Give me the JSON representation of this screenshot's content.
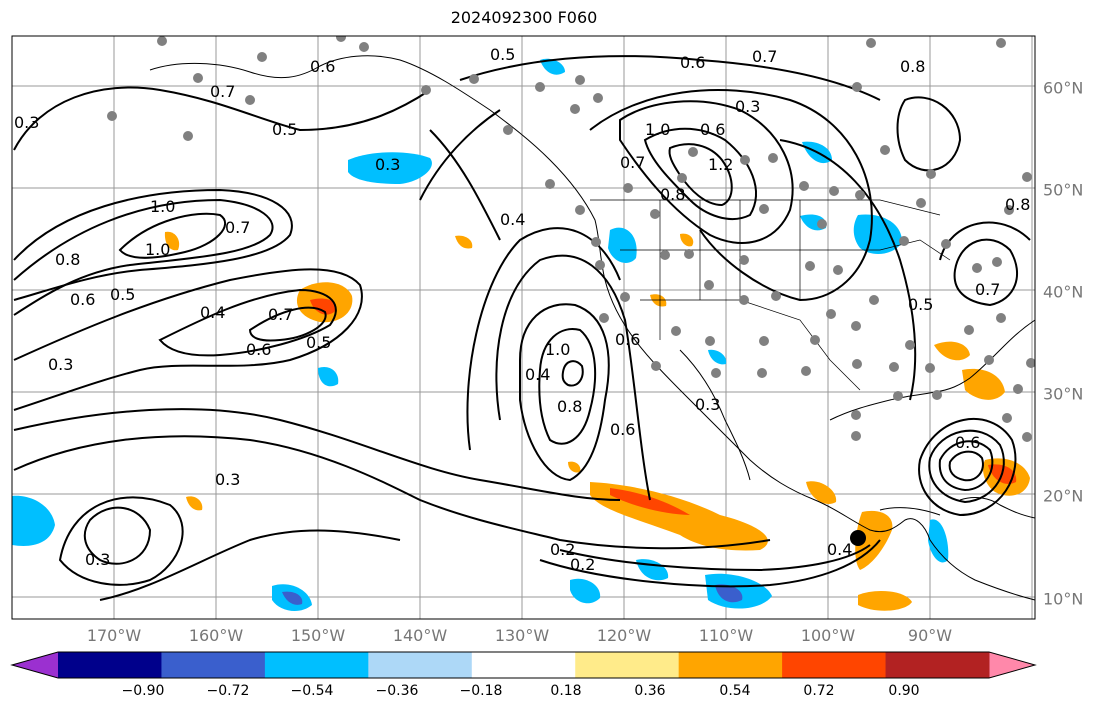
{
  "title": "2024092300 F060",
  "lon_labels": [
    "170°W",
    "160°W",
    "150°W",
    "140°W",
    "130°W",
    "120°W",
    "110°W",
    "100°W",
    "90°W"
  ],
  "lat_labels": [
    "60°N",
    "50°N",
    "40°N",
    "30°N",
    "20°N",
    "10°N"
  ],
  "contour_labels": [
    "1.0",
    "1.0",
    "0.8",
    "0.7",
    "0.6",
    "0.5",
    "0.4",
    "0.3",
    "0.3",
    "0.6",
    "0.5",
    "0.7",
    "0.3",
    "0.3",
    "0.5",
    "0.6",
    "0.7",
    "0.4",
    "1.0",
    "0.8",
    "0.6",
    "0.2",
    "0.2",
    "0.4",
    "0.6",
    "0.7",
    "0.8",
    "0.3",
    "0.5",
    "0.6",
    "0.7",
    "1.0",
    "1.2",
    "0.8",
    "0.6",
    "0.3",
    "0.5",
    "0.8",
    "0.7",
    "0.6",
    "0.3",
    "0.4"
  ],
  "colorbar": {
    "ticks": [
      "−0.90",
      "−0.72",
      "−0.54",
      "−0.36",
      "−0.18",
      "0.18",
      "0.36",
      "0.54",
      "0.72",
      "0.90"
    ],
    "colors": [
      "#9b30d0",
      "#00008b",
      "#3a5fcd",
      "#00bfff",
      "#add8f7",
      "#ffffff",
      "#ffeb8a",
      "#ffa500",
      "#ff4500",
      "#b22222",
      "#ff88aa"
    ]
  }
}
